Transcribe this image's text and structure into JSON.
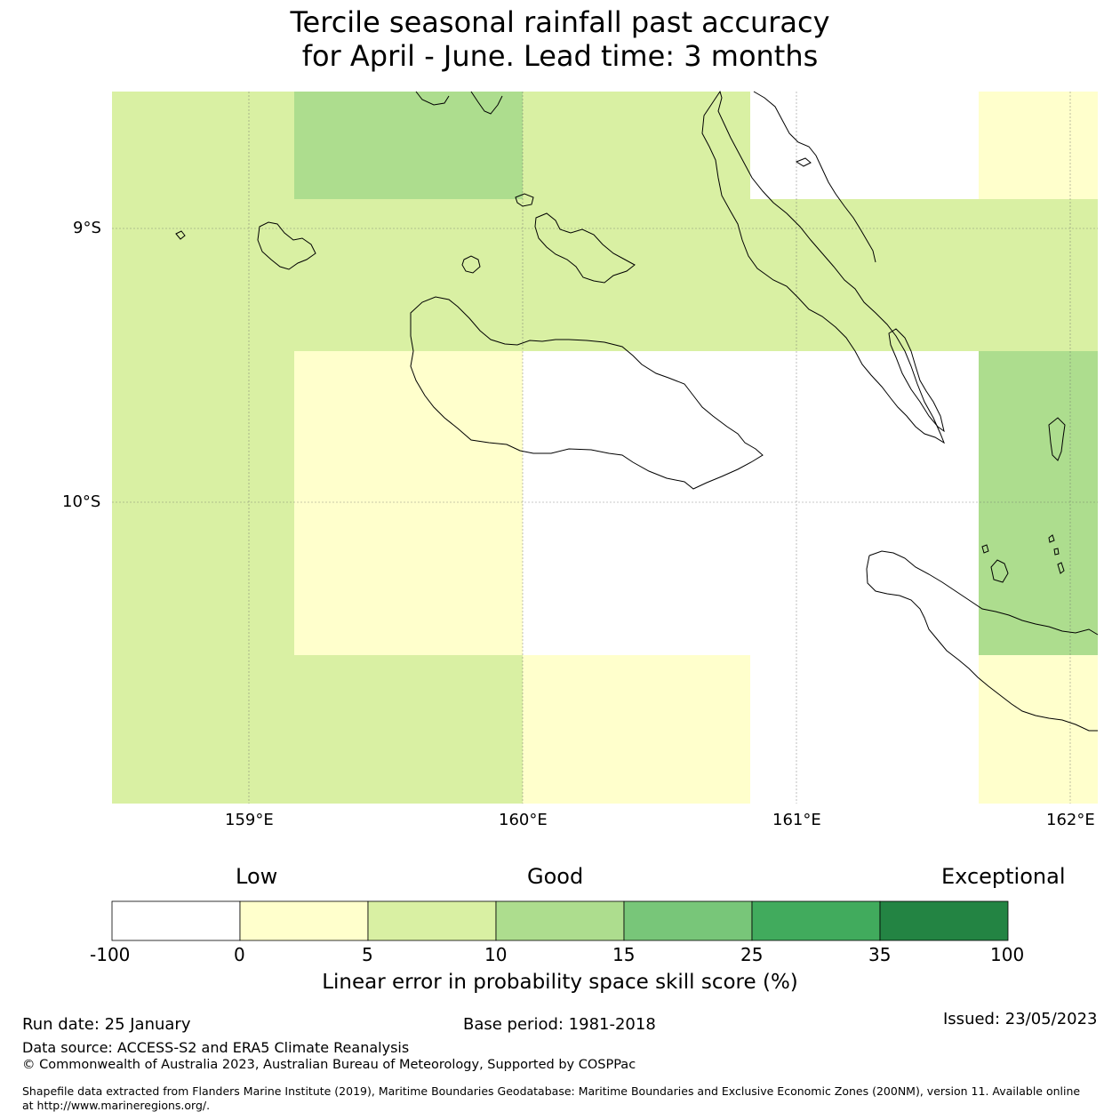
{
  "title": {
    "line1": "Tercile seasonal rainfall past accuracy",
    "line2": "for April - June. Lead time: 3 months"
  },
  "map": {
    "lat_labels": [
      "9°S",
      "10°S"
    ],
    "lon_labels": [
      "159°E",
      "160°E",
      "161°E",
      "162°E"
    ],
    "extent": {
      "lon": [
        158.5,
        162.1
      ],
      "lat": [
        -11.1,
        -8.5
      ]
    },
    "grid_lines_visible": true,
    "score_cells": [
      {
        "lon": [
          158.5,
          159.17
        ],
        "lat": [
          -11.1,
          -8.5
        ],
        "bin": "5-10"
      },
      {
        "lon": [
          159.17,
          160.0
        ],
        "lat": [
          -8.89,
          -8.5
        ],
        "bin": "10-15"
      },
      {
        "lon": [
          160.0,
          160.83
        ],
        "lat": [
          -8.89,
          -8.5
        ],
        "bin": "5-10"
      },
      {
        "lon": [
          159.17,
          160.83
        ],
        "lat": [
          -9.45,
          -8.89
        ],
        "bin": "5-10"
      },
      {
        "lon": [
          160.83,
          161.67
        ],
        "lat": [
          -9.45,
          -8.89
        ],
        "bin": "5-10"
      },
      {
        "lon": [
          161.67,
          162.1
        ],
        "lat": [
          -8.89,
          -8.5
        ],
        "bin": "0-5"
      },
      {
        "lon": [
          161.67,
          162.1
        ],
        "lat": [
          -9.45,
          -8.89
        ],
        "bin": "5-10"
      },
      {
        "lon": [
          159.17,
          160.0
        ],
        "lat": [
          -10.56,
          -9.45
        ],
        "bin": "0-5"
      },
      {
        "lon": [
          159.17,
          160.0
        ],
        "lat": [
          -11.1,
          -10.56
        ],
        "bin": "5-10"
      },
      {
        "lon": [
          160.0,
          160.83
        ],
        "lat": [
          -11.1,
          -10.56
        ],
        "bin": "0-5"
      },
      {
        "lon": [
          161.67,
          162.1
        ],
        "lat": [
          -10.56,
          -9.45
        ],
        "bin": "10-15"
      },
      {
        "lon": [
          161.67,
          162.1
        ],
        "lat": [
          -11.1,
          -10.56
        ],
        "bin": "0-5"
      }
    ]
  },
  "colorbar": {
    "category_low": "Low",
    "category_good": "Good",
    "category_exceptional": "Exceptional",
    "ticks": [
      "-100",
      "0",
      "5",
      "10",
      "15",
      "25",
      "35",
      "100"
    ],
    "colors": [
      "#ffffff",
      "#ffffcc",
      "#d9f0a3",
      "#addd8e",
      "#78c679",
      "#41ab5d",
      "#238443"
    ],
    "label": "Linear error in probability space skill score (%)"
  },
  "footer": {
    "run_date": "Run date: 25 January",
    "base_period": "Base period: 1981-2018",
    "issued": "Issued: 23/05/2023",
    "data_source": "Data source: ACCESS-S2 and ERA5 Climate Reanalysis",
    "copyright": "© Commonwealth of Australia 2023, Australian Bureau of Meteorology, Supported by COSPPac",
    "shapefile": "Shapefile data extracted from Flanders Marine Institute (2019), Maritime Boundaries Geodatabase: Maritime Boundaries and Exclusive Economic Zones (200NM), version 11. Available online at http://www.marineregions.org/."
  }
}
